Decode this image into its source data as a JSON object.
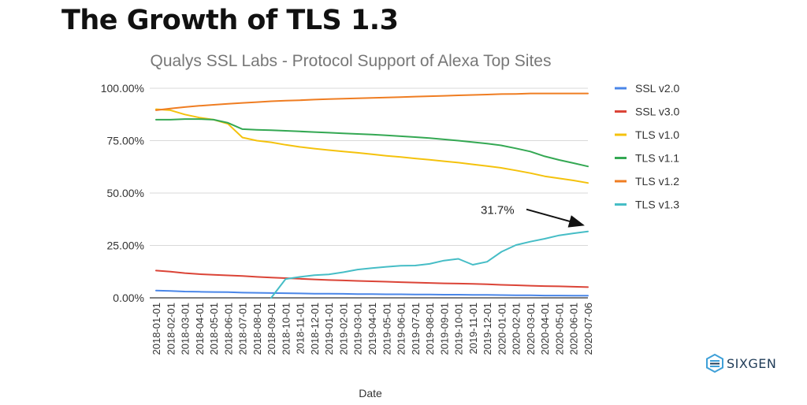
{
  "page": {
    "heading": "The Growth of TLS 1.3",
    "logo_text": "SIXGEN"
  },
  "chart_data": {
    "type": "line",
    "title": "Qualys SSL Labs - Protocol Support of Alexa Top Sites",
    "xlabel": "Date",
    "ylabel": "",
    "ylim": [
      0,
      100
    ],
    "y_ticks": [
      "0.00%",
      "25.00%",
      "50.00%",
      "75.00%",
      "100.00%"
    ],
    "grid": true,
    "legend_position": "right",
    "categories": [
      "2018-01-01",
      "2018-02-01",
      "2018-03-01",
      "2018-04-01",
      "2018-05-01",
      "2018-06-01",
      "2018-07-01",
      "2018-08-01",
      "2018-09-01",
      "2018-10-01",
      "2018-11-01",
      "2018-12-01",
      "2019-01-01",
      "2019-02-01",
      "2019-03-01",
      "2019-04-01",
      "2019-05-01",
      "2019-06-01",
      "2019-07-01",
      "2019-08-01",
      "2019-09-01",
      "2019-10-01",
      "2019-11-01",
      "2019-12-01",
      "2020-01-01",
      "2020-02-01",
      "2020-03-01",
      "2020-04-01",
      "2020-05-01",
      "2020-06-01",
      "2020-07-06"
    ],
    "series": [
      {
        "name": "SSL v2.0",
        "color": "#4a86e8",
        "values": [
          3.5,
          3.3,
          3.0,
          2.9,
          2.8,
          2.7,
          2.5,
          2.4,
          2.3,
          2.2,
          2.1,
          2.0,
          2.0,
          1.9,
          1.8,
          1.8,
          1.7,
          1.7,
          1.6,
          1.6,
          1.5,
          1.5,
          1.4,
          1.4,
          1.3,
          1.2,
          1.2,
          1.1,
          1.1,
          1.0,
          1.0
        ]
      },
      {
        "name": "SSL v3.0",
        "color": "#db4437",
        "values": [
          13.0,
          12.5,
          11.8,
          11.3,
          11.0,
          10.7,
          10.4,
          10.0,
          9.7,
          9.4,
          9.1,
          8.8,
          8.5,
          8.3,
          8.1,
          7.9,
          7.7,
          7.5,
          7.3,
          7.1,
          6.9,
          6.8,
          6.7,
          6.5,
          6.2,
          6.0,
          5.8,
          5.6,
          5.5,
          5.3,
          5.1
        ]
      },
      {
        "name": "TLS v1.0",
        "color": "#f4c20d",
        "values": [
          90.0,
          89.5,
          87.5,
          86.0,
          85.0,
          83.0,
          76.5,
          75.0,
          74.2,
          73.0,
          72.0,
          71.2,
          70.5,
          69.8,
          69.2,
          68.5,
          67.8,
          67.2,
          66.5,
          65.9,
          65.2,
          64.5,
          63.7,
          62.9,
          62.0,
          60.8,
          59.5,
          58.0,
          57.0,
          56.0,
          54.8
        ]
      },
      {
        "name": "TLS v1.1",
        "color": "#34a853",
        "values": [
          85.0,
          85.0,
          85.3,
          85.3,
          85.0,
          83.5,
          80.5,
          80.2,
          80.0,
          79.7,
          79.4,
          79.1,
          78.8,
          78.5,
          78.2,
          77.9,
          77.5,
          77.1,
          76.7,
          76.2,
          75.6,
          75.0,
          74.3,
          73.6,
          72.7,
          71.3,
          69.8,
          67.5,
          65.8,
          64.3,
          62.7
        ]
      },
      {
        "name": "TLS v1.2",
        "color": "#ef7d22",
        "values": [
          89.5,
          90.3,
          91.0,
          91.6,
          92.1,
          92.6,
          93.0,
          93.4,
          93.8,
          94.1,
          94.3,
          94.6,
          94.8,
          95.0,
          95.2,
          95.4,
          95.6,
          95.8,
          96.0,
          96.2,
          96.4,
          96.6,
          96.8,
          97.0,
          97.2,
          97.3,
          97.5,
          97.5,
          97.5,
          97.5,
          97.5
        ]
      },
      {
        "name": "TLS v1.3",
        "color": "#46bdc6",
        "values": [
          null,
          null,
          null,
          null,
          null,
          null,
          null,
          null,
          0.0,
          9.0,
          10.0,
          10.8,
          11.2,
          12.2,
          13.5,
          14.2,
          14.8,
          15.3,
          15.4,
          16.2,
          17.8,
          18.6,
          15.8,
          17.2,
          22.0,
          25.2,
          26.8,
          28.2,
          29.8,
          30.8,
          31.7
        ]
      }
    ],
    "annotations": [
      {
        "text": "31.7%",
        "series": "TLS v1.3",
        "category": "2020-07-06",
        "value": 31.7
      }
    ]
  }
}
